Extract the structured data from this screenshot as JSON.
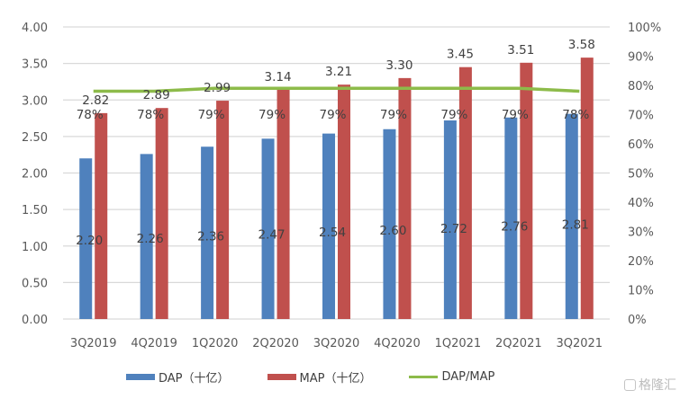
{
  "chart_data": {
    "type": "bar",
    "categories": [
      "3Q2019",
      "4Q2019",
      "1Q2020",
      "2Q2020",
      "3Q2020",
      "4Q2020",
      "1Q2021",
      "2Q2021",
      "3Q2021"
    ],
    "series": [
      {
        "name": "DAP（十亿）",
        "type": "bar",
        "axis": "left",
        "color": "#4f81bd",
        "values": [
          2.2,
          2.26,
          2.36,
          2.47,
          2.54,
          2.6,
          2.72,
          2.76,
          2.81
        ],
        "labels": [
          "2.20",
          "2.26",
          "2.36",
          "2.47",
          "2.54",
          "2.60",
          "2.72",
          "2.76",
          "2.81"
        ]
      },
      {
        "name": "MAP（十亿）",
        "type": "bar",
        "axis": "left",
        "color": "#c0504d",
        "values": [
          2.82,
          2.89,
          2.99,
          3.14,
          3.21,
          3.3,
          3.45,
          3.51,
          3.58
        ],
        "labels": [
          "2.82",
          "2.89",
          "2.99",
          "3.14",
          "3.21",
          "3.30",
          "3.45",
          "3.51",
          "3.58"
        ]
      },
      {
        "name": "DAP/MAP",
        "type": "line",
        "axis": "right",
        "color": "#8dbb4a",
        "values": [
          78,
          78,
          79,
          79,
          79,
          79,
          79,
          79,
          78
        ],
        "labels": [
          "78%",
          "78%",
          "79%",
          "79%",
          "79%",
          "79%",
          "79%",
          "79%",
          "78%"
        ]
      }
    ],
    "y_left": {
      "range": [
        0,
        4
      ],
      "ticks": [
        "0.00",
        "0.50",
        "1.00",
        "1.50",
        "2.00",
        "2.50",
        "3.00",
        "3.50",
        "4.00"
      ]
    },
    "y_right": {
      "range": [
        0,
        100
      ],
      "ticks": [
        "0%",
        "10%",
        "20%",
        "30%",
        "40%",
        "50%",
        "60%",
        "70%",
        "80%",
        "90%",
        "100%"
      ]
    },
    "grid": true,
    "legend_position": "bottom",
    "gridline_color": "#d9d9d9"
  },
  "watermark": "格隆汇"
}
